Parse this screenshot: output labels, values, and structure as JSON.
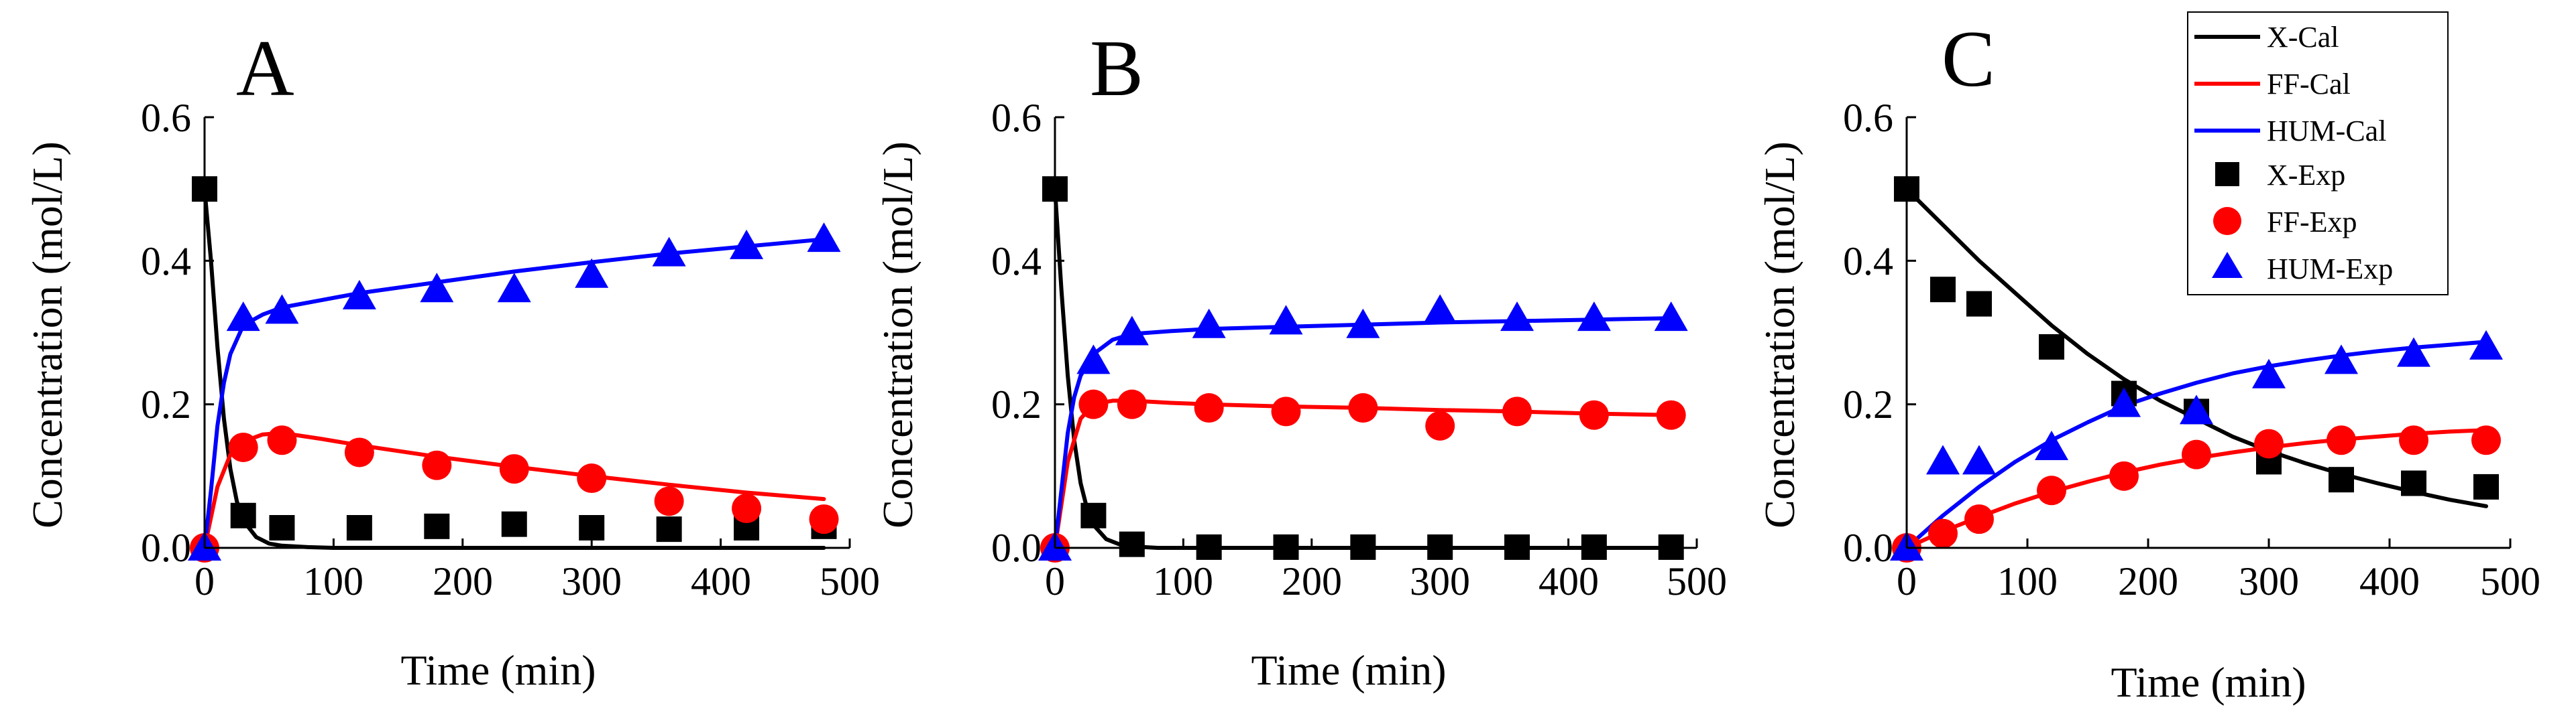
{
  "chart_data": [
    {
      "type": "line+scatter",
      "panel": "A",
      "xlabel": "Time (min)",
      "ylabel": "Concentration (mol/L)",
      "xlim": [
        0,
        500
      ],
      "ylim": [
        0,
        0.6
      ],
      "xticks": [
        0,
        100,
        200,
        300,
        400,
        500
      ],
      "yticks": [
        "0.0",
        "0.2",
        "0.4",
        "0.6"
      ],
      "calc_series": [
        {
          "name": "X-Cal",
          "color": "#000000",
          "x": [
            0,
            5,
            10,
            15,
            20,
            25,
            30,
            40,
            50,
            60,
            80,
            100,
            150,
            200,
            300,
            400,
            480
          ],
          "y": [
            0.5,
            0.4,
            0.28,
            0.18,
            0.11,
            0.065,
            0.038,
            0.015,
            0.006,
            0.003,
            0.001,
            0,
            0,
            0,
            0,
            0,
            0
          ]
        },
        {
          "name": "FF-Cal",
          "color": "#ff0000",
          "x": [
            0,
            10,
            20,
            30,
            45,
            60,
            90,
            120,
            180,
            240,
            300,
            360,
            420,
            480
          ],
          "y": [
            0,
            0.085,
            0.13,
            0.148,
            0.158,
            0.16,
            0.152,
            0.143,
            0.127,
            0.113,
            0.1,
            0.088,
            0.077,
            0.068
          ]
        },
        {
          "name": "HUM-Cal",
          "color": "#0000ff",
          "x": [
            0,
            5,
            10,
            15,
            20,
            30,
            45,
            60,
            90,
            120,
            180,
            240,
            300,
            360,
            420,
            480
          ],
          "y": [
            0,
            0.08,
            0.17,
            0.23,
            0.27,
            0.31,
            0.325,
            0.335,
            0.345,
            0.355,
            0.37,
            0.385,
            0.398,
            0.41,
            0.42,
            0.43
          ]
        }
      ],
      "exp_series": [
        {
          "name": "X-Exp",
          "marker": "square",
          "color": "#000000",
          "x": [
            0,
            30,
            60,
            120,
            180,
            240,
            300,
            360,
            420,
            480
          ],
          "y": [
            0.5,
            0.045,
            0.028,
            0.028,
            0.03,
            0.033,
            0.028,
            0.026,
            0.028,
            0.03
          ]
        },
        {
          "name": "FF-Exp",
          "marker": "circle",
          "color": "#ff0000",
          "x": [
            0,
            30,
            60,
            120,
            180,
            240,
            300,
            360,
            420,
            480
          ],
          "y": [
            0,
            0.14,
            0.15,
            0.133,
            0.115,
            0.11,
            0.097,
            0.065,
            0.055,
            0.04
          ]
        },
        {
          "name": "HUM-Exp",
          "marker": "triangle",
          "color": "#0000ff",
          "x": [
            0,
            30,
            60,
            120,
            180,
            240,
            300,
            360,
            420,
            480
          ],
          "y": [
            0,
            0.32,
            0.33,
            0.35,
            0.36,
            0.36,
            0.38,
            0.41,
            0.42,
            0.43
          ]
        }
      ]
    },
    {
      "type": "line+scatter",
      "panel": "B",
      "xlabel": "Time (min)",
      "ylabel": "Concentration (mol/L)",
      "xlim": [
        0,
        500
      ],
      "ylim": [
        0,
        0.6
      ],
      "xticks": [
        0,
        100,
        200,
        300,
        400,
        500
      ],
      "yticks": [
        "0.0",
        "0.2",
        "0.4",
        "0.6"
      ],
      "calc_series": [
        {
          "name": "X-Cal",
          "color": "#000000",
          "x": [
            0,
            5,
            10,
            15,
            20,
            25,
            30,
            40,
            50,
            60,
            80,
            100,
            200,
            300,
            400,
            480
          ],
          "y": [
            0.5,
            0.36,
            0.24,
            0.15,
            0.09,
            0.055,
            0.032,
            0.012,
            0.005,
            0.002,
            0,
            0,
            0,
            0,
            0,
            0
          ]
        },
        {
          "name": "FF-Cal",
          "color": "#ff0000",
          "x": [
            0,
            10,
            20,
            30,
            45,
            60,
            90,
            120,
            180,
            240,
            300,
            360,
            420,
            480
          ],
          "y": [
            0,
            0.12,
            0.18,
            0.2,
            0.205,
            0.205,
            0.202,
            0.2,
            0.197,
            0.195,
            0.192,
            0.19,
            0.187,
            0.185
          ]
        },
        {
          "name": "HUM-Cal",
          "color": "#0000ff",
          "x": [
            0,
            5,
            10,
            15,
            20,
            30,
            45,
            60,
            90,
            120,
            180,
            240,
            300,
            360,
            420,
            480
          ],
          "y": [
            0,
            0.08,
            0.16,
            0.21,
            0.24,
            0.27,
            0.29,
            0.298,
            0.302,
            0.305,
            0.308,
            0.311,
            0.314,
            0.316,
            0.318,
            0.32
          ]
        }
      ],
      "exp_series": [
        {
          "name": "X-Exp",
          "marker": "square",
          "color": "#000000",
          "x": [
            0,
            30,
            60,
            120,
            180,
            240,
            300,
            360,
            420,
            480
          ],
          "y": [
            0.5,
            0.045,
            0.005,
            0.001,
            0.001,
            0.001,
            0.001,
            0.001,
            0.001,
            0.001
          ]
        },
        {
          "name": "FF-Exp",
          "marker": "circle",
          "color": "#ff0000",
          "x": [
            0,
            30,
            60,
            120,
            180,
            240,
            300,
            360,
            420,
            480
          ],
          "y": [
            0,
            0.2,
            0.2,
            0.195,
            0.19,
            0.195,
            0.17,
            0.19,
            0.185,
            0.185
          ]
        },
        {
          "name": "HUM-Exp",
          "marker": "triangle",
          "color": "#0000ff",
          "x": [
            0,
            30,
            60,
            120,
            180,
            240,
            300,
            360,
            420,
            480
          ],
          "y": [
            0,
            0.26,
            0.3,
            0.31,
            0.315,
            0.31,
            0.33,
            0.32,
            0.32,
            0.32
          ]
        }
      ]
    },
    {
      "type": "line+scatter",
      "panel": "C",
      "xlabel": "Time (min)",
      "ylabel": "Concentration (mol/L)",
      "xlim": [
        0,
        500
      ],
      "ylim": [
        0,
        0.6
      ],
      "xticks": [
        0,
        100,
        200,
        300,
        400,
        500
      ],
      "yticks": [
        "0.0",
        "0.2",
        "0.4",
        "0.6"
      ],
      "legend": {
        "placement": "top-right",
        "entries": [
          "X-Cal",
          "FF-Cal",
          "HUM-Cal",
          "X-Exp",
          "FF-Exp",
          "HUM-Exp"
        ]
      },
      "calc_series": [
        {
          "name": "X-Cal",
          "color": "#000000",
          "x": [
            0,
            30,
            60,
            90,
            120,
            150,
            180,
            210,
            240,
            270,
            300,
            330,
            360,
            390,
            420,
            450,
            480
          ],
          "y": [
            0.5,
            0.45,
            0.4,
            0.355,
            0.31,
            0.27,
            0.235,
            0.205,
            0.18,
            0.155,
            0.135,
            0.118,
            0.103,
            0.09,
            0.078,
            0.067,
            0.058
          ]
        },
        {
          "name": "FF-Cal",
          "color": "#ff0000",
          "x": [
            0,
            30,
            60,
            90,
            120,
            150,
            180,
            210,
            240,
            270,
            300,
            330,
            360,
            390,
            420,
            450,
            480
          ],
          "y": [
            0,
            0.023,
            0.043,
            0.062,
            0.078,
            0.092,
            0.105,
            0.116,
            0.125,
            0.133,
            0.14,
            0.146,
            0.151,
            0.155,
            0.159,
            0.162,
            0.164
          ]
        },
        {
          "name": "HUM-Cal",
          "color": "#0000ff",
          "x": [
            0,
            30,
            60,
            90,
            120,
            150,
            180,
            210,
            240,
            270,
            300,
            330,
            360,
            390,
            420,
            450,
            480
          ],
          "y": [
            0,
            0.045,
            0.085,
            0.12,
            0.15,
            0.175,
            0.198,
            0.215,
            0.23,
            0.243,
            0.253,
            0.261,
            0.268,
            0.274,
            0.279,
            0.283,
            0.287
          ]
        }
      ],
      "exp_series": [
        {
          "name": "X-Exp",
          "marker": "square",
          "color": "#000000",
          "x": [
            0,
            30,
            60,
            120,
            180,
            240,
            300,
            360,
            420,
            480
          ],
          "y": [
            0.5,
            0.36,
            0.34,
            0.28,
            0.215,
            0.19,
            0.12,
            0.095,
            0.09,
            0.085
          ]
        },
        {
          "name": "FF-Exp",
          "marker": "circle",
          "color": "#ff0000",
          "x": [
            0,
            30,
            60,
            120,
            180,
            240,
            300,
            360,
            420,
            480
          ],
          "y": [
            0,
            0.02,
            0.04,
            0.08,
            0.1,
            0.13,
            0.145,
            0.15,
            0.15,
            0.15
          ]
        },
        {
          "name": "HUM-Exp",
          "marker": "triangle",
          "color": "#0000ff",
          "x": [
            0,
            30,
            60,
            120,
            180,
            240,
            300,
            360,
            420,
            480
          ],
          "y": [
            0,
            0.12,
            0.12,
            0.14,
            0.2,
            0.19,
            0.24,
            0.26,
            0.27,
            0.28
          ]
        }
      ]
    }
  ]
}
